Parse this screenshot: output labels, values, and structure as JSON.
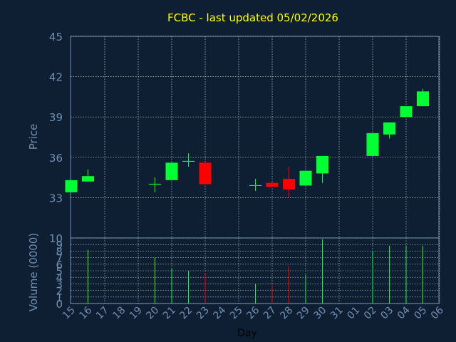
{
  "chart_data": {
    "type": "candlestick",
    "title": "FCBC - last updated 05/02/2026",
    "colors": {
      "background": "#0f1f33",
      "axis_text": "#6f8fb0",
      "title": "#ffff00",
      "grid": "#c8c8c8",
      "up": "#00ff33",
      "down": "#ff0000"
    },
    "price_panel": {
      "ylabel": "Price",
      "ylim": [
        30,
        45
      ],
      "ticks": [
        "33",
        "36",
        "39",
        "42",
        "45"
      ]
    },
    "volume_panel": {
      "ylabel": "Volume (0000)",
      "ylim": [
        0,
        10
      ],
      "ticks": [
        "0",
        "1",
        "2",
        "3",
        "4",
        "5",
        "6",
        "7",
        "8",
        "9",
        "10"
      ]
    },
    "xlabel": "Day",
    "x_ticks": [
      "15",
      "16",
      "17",
      "18",
      "19",
      "20",
      "21",
      "22",
      "23",
      "24",
      "25",
      "26",
      "27",
      "28",
      "29",
      "30",
      "31",
      "01",
      "02",
      "03",
      "04",
      "05",
      "06"
    ],
    "candles": [
      {
        "day": "15",
        "open": 33.4,
        "close": 34.3,
        "high": 34.3,
        "low": 33.4,
        "volume": 0
      },
      {
        "day": "16",
        "open": 34.2,
        "close": 34.6,
        "high": 35.1,
        "low": 34.2,
        "volume": 8.2
      },
      {
        "day": "20",
        "open": 34.0,
        "close": 34.0,
        "high": 34.5,
        "low": 33.4,
        "volume": 7.0
      },
      {
        "day": "21",
        "open": 34.3,
        "close": 35.6,
        "high": 35.6,
        "low": 34.3,
        "volume": 5.4
      },
      {
        "day": "22",
        "open": 35.7,
        "close": 35.7,
        "high": 36.3,
        "low": 35.3,
        "volume": 5.0
      },
      {
        "day": "23",
        "open": 35.6,
        "close": 34.0,
        "high": 35.6,
        "low": 34.0,
        "volume": 4.6
      },
      {
        "day": "26",
        "open": 33.9,
        "close": 33.9,
        "high": 34.4,
        "low": 33.5,
        "volume": 3.0
      },
      {
        "day": "27",
        "open": 34.1,
        "close": 33.8,
        "high": 34.1,
        "low": 33.8,
        "volume": 2.8
      },
      {
        "day": "28",
        "open": 34.4,
        "close": 33.6,
        "high": 35.3,
        "low": 33.0,
        "volume": 5.7
      },
      {
        "day": "29",
        "open": 33.9,
        "close": 35.0,
        "high": 35.0,
        "low": 33.9,
        "volume": 4.4
      },
      {
        "day": "30",
        "open": 34.8,
        "close": 36.1,
        "high": 36.1,
        "low": 34.1,
        "volume": 9.8
      },
      {
        "day": "02",
        "open": 36.1,
        "close": 37.8,
        "high": 37.8,
        "low": 36.1,
        "volume": 8.0
      },
      {
        "day": "03",
        "open": 37.7,
        "close": 38.6,
        "high": 38.6,
        "low": 37.4,
        "volume": 8.8
      },
      {
        "day": "04",
        "open": 39.0,
        "close": 39.8,
        "high": 39.8,
        "low": 39.0,
        "volume": 8.7
      },
      {
        "day": "05",
        "open": 39.8,
        "close": 40.9,
        "high": 41.1,
        "low": 39.8,
        "volume": 8.8
      }
    ]
  }
}
